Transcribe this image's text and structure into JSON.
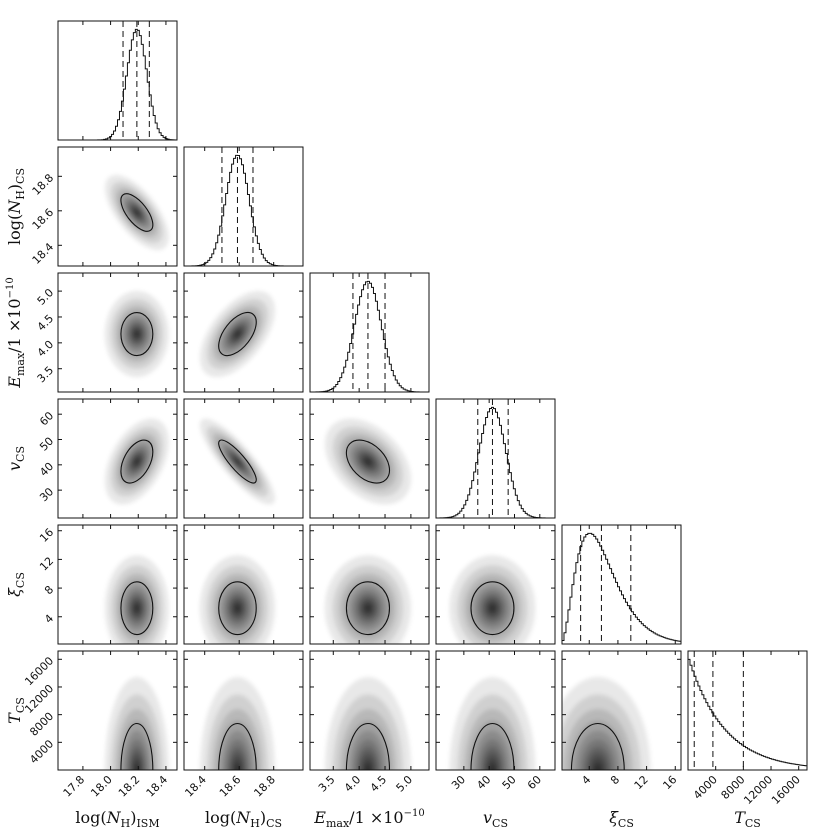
{
  "chart_data": {
    "type": "corner",
    "title": "",
    "parameters": [
      {
        "key": "log_NH_ISM",
        "label": "log(N_H)_ISM",
        "range": [
          17.62,
          18.48
        ],
        "ticks": [
          17.8,
          18.0,
          18.2,
          18.4
        ],
        "tick_labels": [
          "17.8",
          "18.0",
          "18.2",
          "18.4"
        ],
        "mean": 18.19,
        "sigma": 0.072,
        "quantiles": [
          18.09,
          18.19,
          18.28
        ]
      },
      {
        "key": "log_NH_CS",
        "label": "log(N_H)_CS",
        "range": [
          18.28,
          18.97
        ],
        "ticks": [
          18.4,
          18.6,
          18.8
        ],
        "tick_labels": [
          "18.4",
          "18.6",
          "18.8"
        ],
        "mean": 18.59,
        "sigma": 0.068,
        "quantiles": [
          18.5,
          18.59,
          18.68
        ]
      },
      {
        "key": "E_max",
        "label": "E_max/1×10^-10",
        "range": [
          3.05,
          5.35
        ],
        "ticks": [
          3.5,
          4.0,
          4.5,
          5.0
        ],
        "tick_labels": [
          "3.5",
          "4.0",
          "4.5",
          "5.0"
        ],
        "mean": 4.17,
        "sigma": 0.26,
        "quantiles": [
          3.88,
          4.17,
          4.5
        ]
      },
      {
        "key": "v_CS",
        "label": "v_CS",
        "range": [
          19,
          66
        ],
        "ticks": [
          30,
          40,
          50,
          60
        ],
        "tick_labels": [
          "30",
          "40",
          "50",
          "60"
        ],
        "mean": 41.3,
        "sigma": 5.3,
        "quantiles": [
          35.5,
          41.3,
          47.5
        ]
      },
      {
        "key": "xi_CS",
        "label": "ξ_CS",
        "range": [
          0.2,
          16.8
        ],
        "ticks": [
          4,
          8,
          12,
          16
        ],
        "tick_labels": [
          "4",
          "8",
          "12",
          "16"
        ],
        "mean": 5.2,
        "sigma": 2.3,
        "quantiles": [
          2.8,
          5.7,
          9.8
        ]
      },
      {
        "key": "T_CS",
        "label": "T_CS",
        "range": [
          0,
          17200
        ],
        "ticks": [
          4000,
          8000,
          12000,
          16000
        ],
        "tick_labels": [
          "4000",
          "8000",
          "12000",
          "16000"
        ],
        "mean": 0,
        "sigma": 5000,
        "quantiles": [
          900,
          3600,
          8000
        ]
      }
    ],
    "correlations": {
      "1-0": -0.65,
      "2-0": 0.0,
      "2-1": 0.55,
      "3-0": 0.45,
      "3-1": -0.85,
      "3-2": -0.4,
      "4-0": 0.0,
      "4-1": 0.0,
      "4-2": 0.0,
      "4-3": 0.0,
      "5-0": 0.0,
      "5-1": 0.0,
      "5-2": 0.0,
      "5-3": 0.0,
      "5-4": 0.0
    },
    "grid": false
  },
  "labels": {
    "x": [
      {
        "main": "log(",
        "n": "N",
        "sub1": "H",
        "close": ")",
        "sub2": "ISM"
      },
      {
        "main": "log(",
        "n": "N",
        "sub1": "H",
        "close": ")",
        "sub2": "CS"
      },
      {
        "main": "",
        "n": "E",
        "sub1": "max",
        "close": "/1 ×10",
        "sup": "−10"
      },
      {
        "main": "",
        "n": "v",
        "sub1": "",
        "close": "",
        "sub2": "CS"
      },
      {
        "main": "",
        "n": "ξ",
        "sub1": "",
        "close": "",
        "sub2": "CS"
      },
      {
        "main": "",
        "n": "T",
        "sub1": "",
        "close": "",
        "sub2": "CS"
      }
    ]
  }
}
